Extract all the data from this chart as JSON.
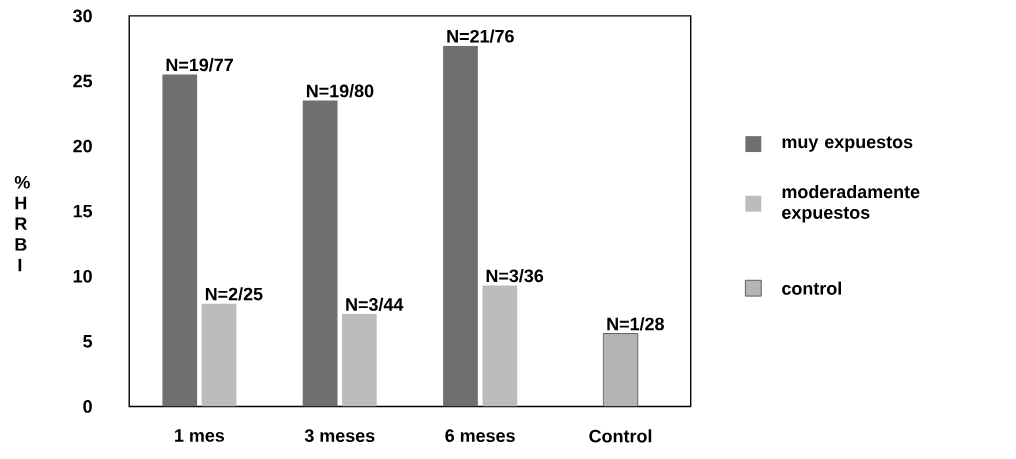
{
  "chart_data": {
    "type": "bar",
    "ylabel": "% H R B I",
    "categories": [
      "1 mes",
      "3 meses",
      "6 meses",
      "Control"
    ],
    "series": [
      {
        "name": "muy expuestos",
        "color": "#6f6f6f",
        "values": [
          25.5,
          23.5,
          27.7,
          null
        ],
        "value_labels": [
          "N=19/77",
          "N=19/80",
          "N=21/76",
          null
        ]
      },
      {
        "name": "moderadamente expuestos",
        "color": "#bcbcbc",
        "values": [
          7.9,
          7.1,
          9.3,
          null
        ],
        "value_labels": [
          "N=2/25",
          "N=3/44",
          "N=3/36",
          null
        ]
      },
      {
        "name": "control",
        "color": "#b4b4b4",
        "values": [
          null,
          null,
          null,
          5.6
        ],
        "value_labels": [
          null,
          null,
          null,
          "N=1/28"
        ]
      }
    ],
    "ylim": [
      0,
      30
    ],
    "yticks": [
      0,
      5,
      10,
      15,
      20,
      25,
      30
    ],
    "grid": false,
    "legend": "right"
  }
}
